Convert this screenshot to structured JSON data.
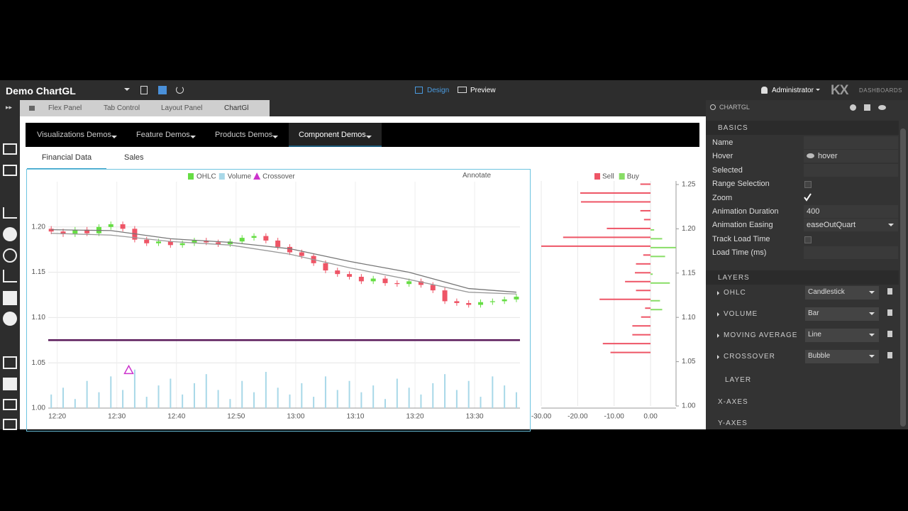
{
  "header": {
    "title": "Demo ChartGL",
    "design": "Design",
    "preview": "Preview",
    "user": "Administrator",
    "logo": "KX",
    "logo_sub": "DASHBOARDS"
  },
  "breadcrumb": [
    "Flex Panel",
    "Tab Control",
    "Layout Panel",
    "ChartGl"
  ],
  "menu": [
    "Visualizations Demos",
    "Feature Demos",
    "Products Demos",
    "Component Demos"
  ],
  "tabs": [
    "Financial Data",
    "Sales"
  ],
  "annotate": "Annotate",
  "panel": {
    "search": "CHARTGL",
    "basics": "BASICS",
    "properties": [
      {
        "label": "Name"
      },
      {
        "label": "Hover",
        "value": "hover"
      },
      {
        "label": "Selected"
      },
      {
        "label": "Range Selection",
        "checked": false
      },
      {
        "label": "Zoom",
        "checked": true
      },
      {
        "label": "Animation Duration",
        "value": 400
      },
      {
        "label": "Animation Easing",
        "value": "easeOutQuart"
      },
      {
        "label": "Track Load Time",
        "checked": false
      },
      {
        "label": "Load Time (ms)"
      }
    ],
    "layers_title": "LAYERS",
    "layers": [
      {
        "name": "OHLC",
        "type": "Candlestick"
      },
      {
        "name": "VOLUME",
        "type": "Bar"
      },
      {
        "name": "MOVING AVERAGE",
        "type": "Line"
      },
      {
        "name": "CROSSOVER",
        "type": "Bubble"
      }
    ],
    "add_layer": "LAYER",
    "sections": [
      "X-AXES",
      "Y-AXES"
    ]
  },
  "chart_data": [
    {
      "type": "candlestick",
      "x": [
        739,
        741,
        743,
        745,
        747,
        749,
        751,
        753,
        755,
        757,
        759,
        761,
        763,
        765,
        767,
        769,
        771,
        773,
        775,
        777,
        779,
        781,
        783,
        785,
        787,
        789,
        791,
        793,
        795,
        797,
        799,
        801,
        803,
        805,
        807,
        809,
        811,
        813,
        815,
        817
      ],
      "series": [
        {
          "name": "OHLC",
          "color_up": "#66dd44",
          "color_down": "#ee5566",
          "open": [
            1.198,
            1.195,
            1.192,
            1.197,
            1.193,
            1.2,
            1.203,
            1.198,
            1.186,
            1.182,
            1.184,
            1.18,
            1.182,
            1.185,
            1.183,
            1.181,
            1.184,
            1.188,
            1.19,
            1.185,
            1.178,
            1.172,
            1.168,
            1.16,
            1.152,
            1.148,
            1.145,
            1.14,
            1.143,
            1.138,
            1.137,
            1.14,
            1.136,
            1.13,
            1.118,
            1.116,
            1.114,
            1.117,
            1.118,
            1.12
          ],
          "high": [
            1.201,
            1.198,
            1.2,
            1.2,
            1.203,
            1.206,
            1.206,
            1.201,
            1.189,
            1.187,
            1.187,
            1.185,
            1.188,
            1.188,
            1.186,
            1.187,
            1.191,
            1.193,
            1.193,
            1.188,
            1.181,
            1.175,
            1.171,
            1.163,
            1.155,
            1.151,
            1.148,
            1.146,
            1.146,
            1.141,
            1.143,
            1.143,
            1.139,
            1.133,
            1.121,
            1.119,
            1.12,
            1.121,
            1.123,
            1.126
          ],
          "low": [
            1.192,
            1.189,
            1.189,
            1.19,
            1.19,
            1.197,
            1.195,
            1.183,
            1.179,
            1.179,
            1.177,
            1.177,
            1.179,
            1.18,
            1.178,
            1.178,
            1.181,
            1.185,
            1.182,
            1.175,
            1.169,
            1.165,
            1.157,
            1.149,
            1.145,
            1.142,
            1.137,
            1.137,
            1.135,
            1.134,
            1.134,
            1.133,
            1.127,
            1.115,
            1.113,
            1.111,
            1.111,
            1.114,
            1.115,
            1.117
          ],
          "close": [
            1.195,
            1.192,
            1.197,
            1.193,
            1.2,
            1.203,
            1.198,
            1.186,
            1.182,
            1.184,
            1.18,
            1.182,
            1.185,
            1.183,
            1.181,
            1.184,
            1.188,
            1.19,
            1.185,
            1.178,
            1.172,
            1.168,
            1.16,
            1.152,
            1.148,
            1.145,
            1.14,
            1.143,
            1.138,
            1.137,
            1.14,
            1.136,
            1.13,
            1.118,
            1.116,
            1.114,
            1.117,
            1.118,
            1.12,
            1.123
          ]
        },
        {
          "name": "Volume",
          "color": "#a8d8e8",
          "axis": "y2",
          "values": [
            30,
            45,
            20,
            60,
            35,
            70,
            40,
            85,
            25,
            50,
            65,
            30,
            55,
            75,
            40,
            20,
            60,
            35,
            80,
            45,
            30,
            55,
            25,
            70,
            40,
            60,
            35,
            50,
            20,
            65,
            45,
            30,
            55,
            75,
            40,
            60,
            25,
            70,
            50,
            35
          ]
        },
        {
          "name": "Crossover",
          "color": "#cc33cc",
          "x": [
            752
          ],
          "values": [
            1.042
          ]
        }
      ],
      "moving_averages": [
        {
          "color": "#777777",
          "x": [
            739,
            749,
            759,
            769,
            779,
            789,
            799,
            809,
            817
          ],
          "values": [
            1.197,
            1.196,
            1.187,
            1.183,
            1.176,
            1.162,
            1.15,
            1.132,
            1.128
          ]
        },
        {
          "color": "#999999",
          "x": [
            739,
            749,
            759,
            769,
            779,
            789,
            799,
            809,
            817
          ],
          "values": [
            1.193,
            1.191,
            1.184,
            1.18,
            1.17,
            1.155,
            1.142,
            1.128,
            1.126
          ]
        }
      ],
      "reference_line": {
        "value": 1.075,
        "color": "#5a1a5a"
      },
      "xlim": [
        738.5,
        817.6
      ],
      "xticks": [
        {
          "value": 740,
          "label": "12:20"
        },
        {
          "value": 750,
          "label": "12:30"
        },
        {
          "value": 760,
          "label": "12:40"
        },
        {
          "value": 770,
          "label": "12:50"
        },
        {
          "value": 780,
          "label": "13:00"
        },
        {
          "value": 790,
          "label": "13:10"
        },
        {
          "value": 800,
          "label": "13:20"
        },
        {
          "value": 810,
          "label": "13:30"
        }
      ],
      "ylim": [
        1.0,
        1.25
      ],
      "yticks": [
        {
          "value": 1,
          "label": "1.00"
        },
        1.05,
        {
          "value": 1.1,
          "label": "1.10"
        },
        1.15,
        {
          "value": 1.2,
          "label": "1.20"
        }
      ],
      "y2lim": [
        0,
        500
      ],
      "grid": true
    },
    {
      "type": "hbar",
      "y": [
        1.25,
        1.24,
        1.23,
        1.22,
        1.21,
        1.2,
        1.19,
        1.18,
        1.17,
        1.16,
        1.15,
        1.14,
        1.13,
        1.12,
        1.11,
        1.1,
        1.09,
        1.08,
        1.07,
        1.06
      ],
      "series": [
        {
          "name": "Sell",
          "color": "#ee5566",
          "values": [
            -2.8,
            -19.3,
            -19.1,
            -2.8,
            -1.8,
            -12,
            -24,
            -30,
            -2,
            -4,
            -4.3,
            -7,
            -4,
            -14,
            -1.5,
            -2.6,
            -5,
            -5,
            -13.1,
            -11
          ]
        },
        {
          "name": "Buy",
          "color": "#88dd66",
          "values": [
            0,
            0,
            0,
            0,
            0,
            1,
            3.2,
            7,
            4,
            0,
            0.6,
            5.3,
            0,
            2.6,
            3.2,
            0,
            0,
            0,
            0,
            0
          ]
        }
      ],
      "xlim": [
        -30,
        7
      ],
      "xticks": [
        {
          "value": -30,
          "label": "-30.00"
        },
        {
          "value": -20,
          "label": "-20.00"
        },
        {
          "value": -10,
          "label": "-10.00"
        },
        {
          "value": 0,
          "label": "0.00"
        }
      ],
      "ylim": [
        1.0,
        1.25
      ],
      "yticks": [
        {
          "value": 1,
          "label": "1.00"
        },
        1.05,
        {
          "value": 1.1,
          "label": "1.10"
        },
        1.15,
        {
          "value": 1.2,
          "label": "1.20"
        },
        1.25
      ],
      "grid": true
    }
  ]
}
